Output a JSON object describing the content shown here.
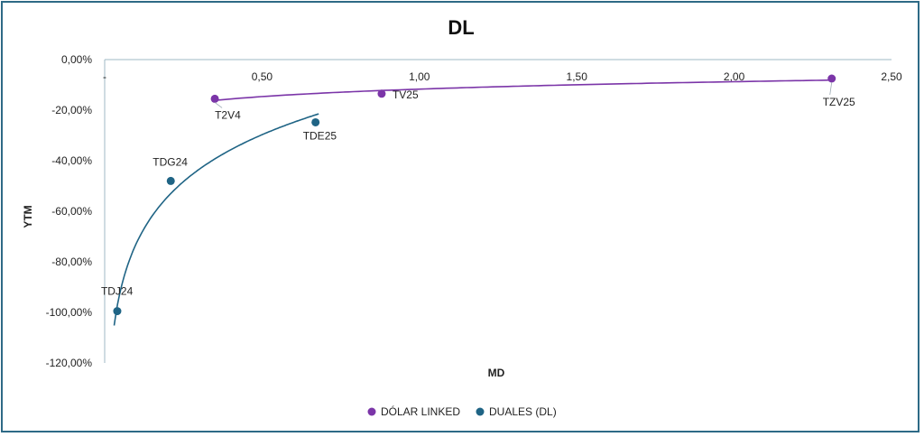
{
  "chart_data": {
    "type": "scatter",
    "title": "DL",
    "xlabel": "MD",
    "ylabel": "YTM",
    "xlim": [
      0,
      2.5
    ],
    "ylim": [
      -120,
      0
    ],
    "x_ticks": [
      "0,50",
      "1,00",
      "1,50",
      "2,00",
      "2,50"
    ],
    "x_tick_values": [
      0.5,
      1.0,
      1.5,
      2.0,
      2.5
    ],
    "x_tick_zero": "-",
    "y_ticks": [
      "0,00%",
      "-20,00%",
      "-40,00%",
      "-60,00%",
      "-80,00%",
      "-100,00%",
      "-120,00%"
    ],
    "y_tick_values": [
      0,
      -20,
      -40,
      -60,
      -80,
      -100,
      -120
    ],
    "legend_position": "bottom",
    "series": [
      {
        "name": "DÓLAR LINKED",
        "color": "#7b35a8",
        "trendline": "logarithmic",
        "points": [
          {
            "label": "T2V4",
            "x": 0.35,
            "y": -15.5
          },
          {
            "label": "TV25",
            "x": 0.88,
            "y": -13.5
          },
          {
            "label": "TZV25",
            "x": 2.31,
            "y": -7.5
          }
        ]
      },
      {
        "name": "DUALES (DL)",
        "color": "#1f6485",
        "trendline": "logarithmic",
        "points": [
          {
            "label": "TDJ24",
            "x": 0.04,
            "y": -99.5
          },
          {
            "label": "TDG24",
            "x": 0.21,
            "y": -48.0
          },
          {
            "label": "TDE25",
            "x": 0.67,
            "y": -24.8
          }
        ]
      }
    ]
  }
}
